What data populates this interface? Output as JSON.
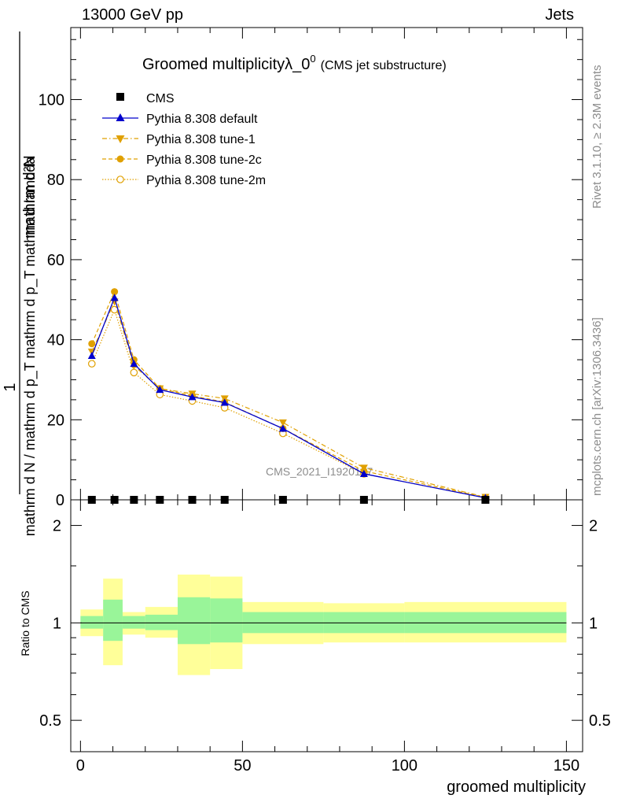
{
  "header": {
    "left": "13000 GeV pp",
    "right": "Jets"
  },
  "title": {
    "main": "Groomed multiplicityλ_0",
    "superscript": "0",
    "sub": "(CMS jet substructure)"
  },
  "side_labels": {
    "rivet": "Rivet 3.1.10, ≥ 2.3M events",
    "mcplots": "mcplots.cern.ch [arXiv:1306.3436]"
  },
  "watermark": "CMS_2021_I1920187",
  "chart_data": [
    {
      "type": "line",
      "xlabel": "groomed multiplicity",
      "ylabel_numerator_top": "mathrm d²N",
      "ylabel_fraction_one": "1",
      "ylabel_main": "mathrm d N / mathrm d p_T mathrm d p_T mathrm d lambda",
      "xlim": [
        -3,
        155
      ],
      "ylim": [
        0,
        118
      ],
      "yticks": [
        0,
        20,
        40,
        60,
        80,
        100
      ],
      "legend_position": "top-left",
      "series": [
        {
          "name": "CMS",
          "color": "#000000",
          "marker": "square",
          "x": [
            3.5,
            10.5,
            16.5,
            24.5,
            34.5,
            44.5,
            62.5,
            87.5,
            125
          ],
          "y": [
            0,
            0,
            0,
            0,
            0,
            0,
            0,
            0,
            0
          ]
        },
        {
          "name": "Pythia 8.308 default",
          "color": "#0000cc",
          "marker": "triangle-up",
          "line": "solid",
          "x": [
            3.5,
            10.5,
            16.5,
            24.5,
            34.5,
            44.5,
            62.5,
            87.5,
            125
          ],
          "y": [
            36.0,
            50.5,
            34.0,
            27.5,
            25.7,
            24.3,
            17.8,
            6.5,
            0.5
          ]
        },
        {
          "name": "Pythia 8.308 tune-1",
          "color": "#e0a000",
          "marker": "triangle-down",
          "line": "dashdot",
          "x": [
            3.5,
            10.5,
            16.5,
            24.5,
            34.5,
            44.5,
            62.5,
            87.5,
            125
          ],
          "y": [
            37.0,
            49.5,
            33.5,
            27.8,
            26.5,
            25.3,
            19.3,
            8.0,
            0.7
          ]
        },
        {
          "name": "Pythia 8.308 tune-2c",
          "color": "#e0a000",
          "marker": "circle-filled",
          "line": "dashed",
          "x": [
            3.5,
            10.5,
            16.5,
            24.5,
            34.5,
            44.5,
            62.5,
            87.5,
            125
          ],
          "y": [
            39.0,
            52.0,
            35.0,
            27.8,
            26.0,
            24.4,
            17.8,
            7.2,
            0.6
          ]
        },
        {
          "name": "Pythia 8.308 tune-2m",
          "color": "#e0a000",
          "marker": "circle-open",
          "line": "dotted",
          "x": [
            3.5,
            10.5,
            16.5,
            24.5,
            34.5,
            44.5,
            62.5,
            87.5,
            125
          ],
          "y": [
            34.0,
            47.5,
            31.8,
            26.3,
            24.7,
            23.0,
            16.6,
            6.5,
            0.5
          ]
        }
      ]
    },
    {
      "type": "area",
      "ylabel": "Ratio to CMS",
      "xlabel": "groomed multiplicity",
      "xlim": [
        -3,
        155
      ],
      "ylim": [
        0.4,
        2.4
      ],
      "log_scale_y": true,
      "yticks": [
        0.5,
        1,
        2
      ],
      "xticks": [
        0,
        50,
        100,
        150
      ],
      "reference_line": 1,
      "bands": [
        {
          "name": "inner",
          "color": "#99f599",
          "bins": [
            [
              0,
              7,
              0.96,
              1.05
            ],
            [
              7,
              13,
              0.88,
              1.18
            ],
            [
              13,
              20,
              0.96,
              1.05
            ],
            [
              20,
              30,
              0.95,
              1.06
            ],
            [
              30,
              40,
              0.86,
              1.2
            ],
            [
              40,
              50,
              0.87,
              1.19
            ],
            [
              50,
              75,
              0.93,
              1.08
            ],
            [
              75,
              100,
              0.93,
              1.08
            ],
            [
              100,
              150,
              0.93,
              1.08
            ]
          ]
        },
        {
          "name": "outer",
          "color": "#ffff99",
          "bins": [
            [
              0,
              7,
              0.91,
              1.1
            ],
            [
              7,
              13,
              0.74,
              1.37
            ],
            [
              13,
              20,
              0.92,
              1.08
            ],
            [
              20,
              30,
              0.9,
              1.12
            ],
            [
              30,
              40,
              0.69,
              1.41
            ],
            [
              40,
              50,
              0.72,
              1.39
            ],
            [
              50,
              75,
              0.86,
              1.16
            ],
            [
              75,
              100,
              0.87,
              1.15
            ],
            [
              100,
              150,
              0.87,
              1.16
            ]
          ]
        }
      ]
    }
  ]
}
